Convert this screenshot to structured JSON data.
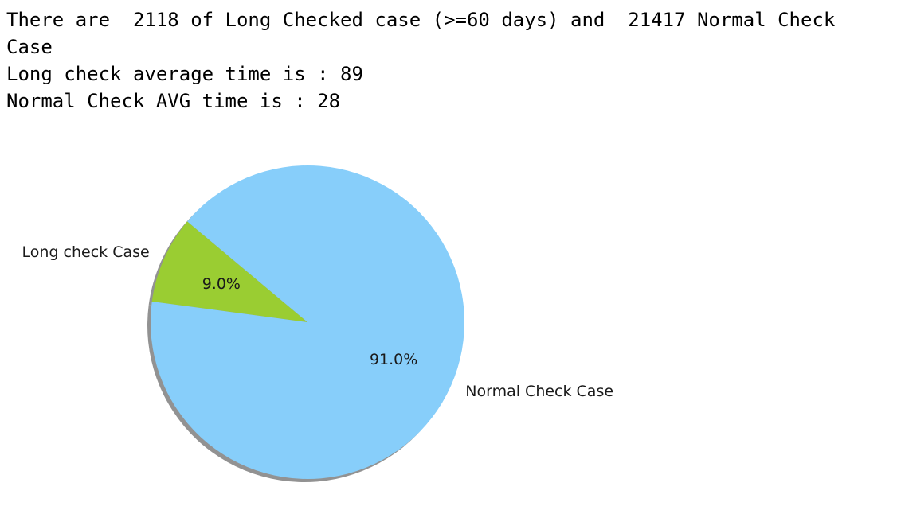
{
  "output": {
    "lines": [
      "There are  2118 of Long Checked case (>=60 days) and  21417 Normal Check Case",
      "Long check average time is : 89",
      "Normal Check AVG time is : 28"
    ]
  },
  "chart_data": {
    "type": "pie",
    "title": "",
    "shadow": true,
    "start_angle_deg": 140,
    "slices": [
      {
        "label": "Long check Case",
        "value": 9.0,
        "pct_label": "9.0%",
        "color": "#9acd32"
      },
      {
        "label": "Normal Check Case",
        "value": 91.0,
        "pct_label": "91.0%",
        "color": "#87cefa"
      }
    ]
  }
}
